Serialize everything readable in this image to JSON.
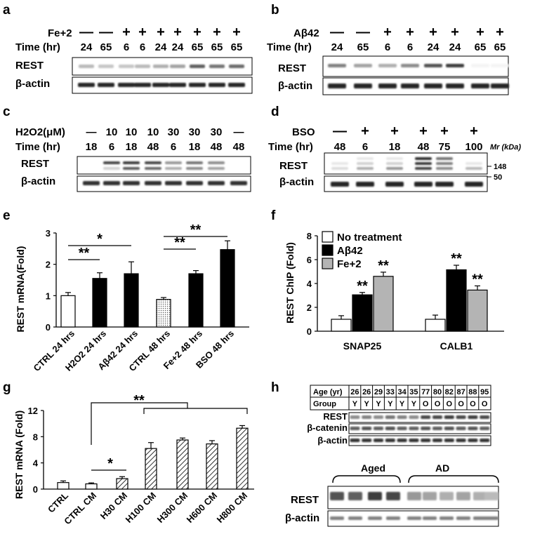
{
  "panel_labels": {
    "a": "a",
    "b": "b",
    "c": "c",
    "d": "d",
    "e": "e",
    "f": "f",
    "g": "g",
    "h": "h"
  },
  "common": {
    "time_label": "Time (hr)",
    "rest": "REST",
    "actin": "β-actin",
    "plus": "+",
    "minus": "—"
  },
  "panel_a": {
    "treatment": "Fe+2",
    "signs": [
      "—",
      "—",
      "+",
      "+",
      "+",
      "+",
      "+",
      "+",
      "+"
    ],
    "times": [
      "24",
      "65",
      "6",
      "6",
      "24",
      "24",
      "65",
      "65",
      "65"
    ]
  },
  "panel_b": {
    "treatment": "Aβ42",
    "signs": [
      "—",
      "—",
      "+",
      "+",
      "+",
      "+",
      "+",
      "+"
    ],
    "times": [
      "24",
      "65",
      "6",
      "6",
      "24",
      "24",
      "65",
      "65"
    ]
  },
  "panel_c": {
    "treatment": "H2O2(μM)",
    "doses": [
      "—",
      "10",
      "10",
      "10",
      "30",
      "30",
      "30",
      "—"
    ],
    "times": [
      "18",
      "6",
      "18",
      "48",
      "6",
      "18",
      "48",
      "48"
    ]
  },
  "panel_d": {
    "treatment": "BSO",
    "signs": [
      "—",
      "+",
      "+",
      "+",
      "+",
      "+"
    ],
    "times": [
      "48",
      "6",
      "18",
      "48",
      "75",
      "100"
    ],
    "mr_label": "Mr (kDa)",
    "markers": [
      "148",
      "50"
    ]
  },
  "panel_e": {
    "chart_data": {
      "type": "bar",
      "ylabel": "REST mRNA(Fold)",
      "ylim": [
        0,
        3
      ],
      "yticks": [
        "0",
        "1",
        "2",
        "3"
      ],
      "categories": [
        "CTRL 24 hrs",
        "H2O2 24 hrs",
        "Aβ42  24 hrs",
        "CTRL 48 hrs",
        "Fe+2 48 hrs",
        "BSO 48 hrs"
      ],
      "values": [
        1.0,
        1.55,
        1.7,
        0.88,
        1.7,
        2.47
      ],
      "errors": [
        0.1,
        0.18,
        0.38,
        0.06,
        0.1,
        0.28
      ],
      "fills": [
        "white",
        "black",
        "black",
        "dotted",
        "black",
        "black"
      ],
      "significance": [
        "**",
        "*",
        "**",
        "**"
      ]
    }
  },
  "panel_f": {
    "chart_data": {
      "type": "bar",
      "ylabel": "REST ChIP (Fold)",
      "ylim": [
        0,
        8
      ],
      "yticks": [
        "0",
        "2",
        "4",
        "6",
        "8"
      ],
      "categories": [
        "SNAP25",
        "CALB1"
      ],
      "series": [
        {
          "name": "No treatment",
          "values": [
            1.0,
            1.0
          ],
          "errors": [
            0.3,
            0.35
          ],
          "color": "#ffffff"
        },
        {
          "name": "Aβ42",
          "values": [
            3.05,
            5.15
          ],
          "errors": [
            0.2,
            0.38
          ],
          "color": "#000000"
        },
        {
          "name": "Fe+2",
          "values": [
            4.6,
            3.45
          ],
          "errors": [
            0.35,
            0.35
          ],
          "color": "#b4b4b4"
        }
      ],
      "significance": [
        "**",
        "**",
        "**",
        "**"
      ]
    }
  },
  "panel_g": {
    "chart_data": {
      "type": "bar",
      "ylabel": "REST mRNA (Fold)",
      "ylim": [
        0,
        12
      ],
      "yticks": [
        "0",
        "4",
        "8",
        "12"
      ],
      "categories": [
        "CTRL",
        "CTRL CM",
        "H30 CM",
        "H100 CM",
        "H300 CM",
        "H600 CM",
        "H800 CM"
      ],
      "values": [
        1.0,
        0.8,
        1.6,
        6.2,
        7.5,
        6.9,
        9.3
      ],
      "errors": [
        0.25,
        0.15,
        0.3,
        0.9,
        0.3,
        0.5,
        0.4
      ],
      "fills": [
        "white",
        "white",
        "hatched",
        "hatched",
        "hatched",
        "hatched",
        "hatched"
      ],
      "significance": [
        "**",
        "*"
      ]
    }
  },
  "panel_h": {
    "age_label": "Age (yr)",
    "group_label": "Group",
    "ages": [
      "26",
      "26",
      "29",
      "33",
      "34",
      "35",
      "77",
      "80",
      "82",
      "87",
      "88",
      "95"
    ],
    "groups": [
      "Y",
      "Y",
      "Y",
      "Y",
      "Y",
      "Y",
      "O",
      "O",
      "O",
      "O",
      "O",
      "O"
    ],
    "blot_labels": [
      "REST",
      "β-catenin",
      "β-actin"
    ],
    "aged_label": "Aged",
    "ad_label": "AD"
  }
}
